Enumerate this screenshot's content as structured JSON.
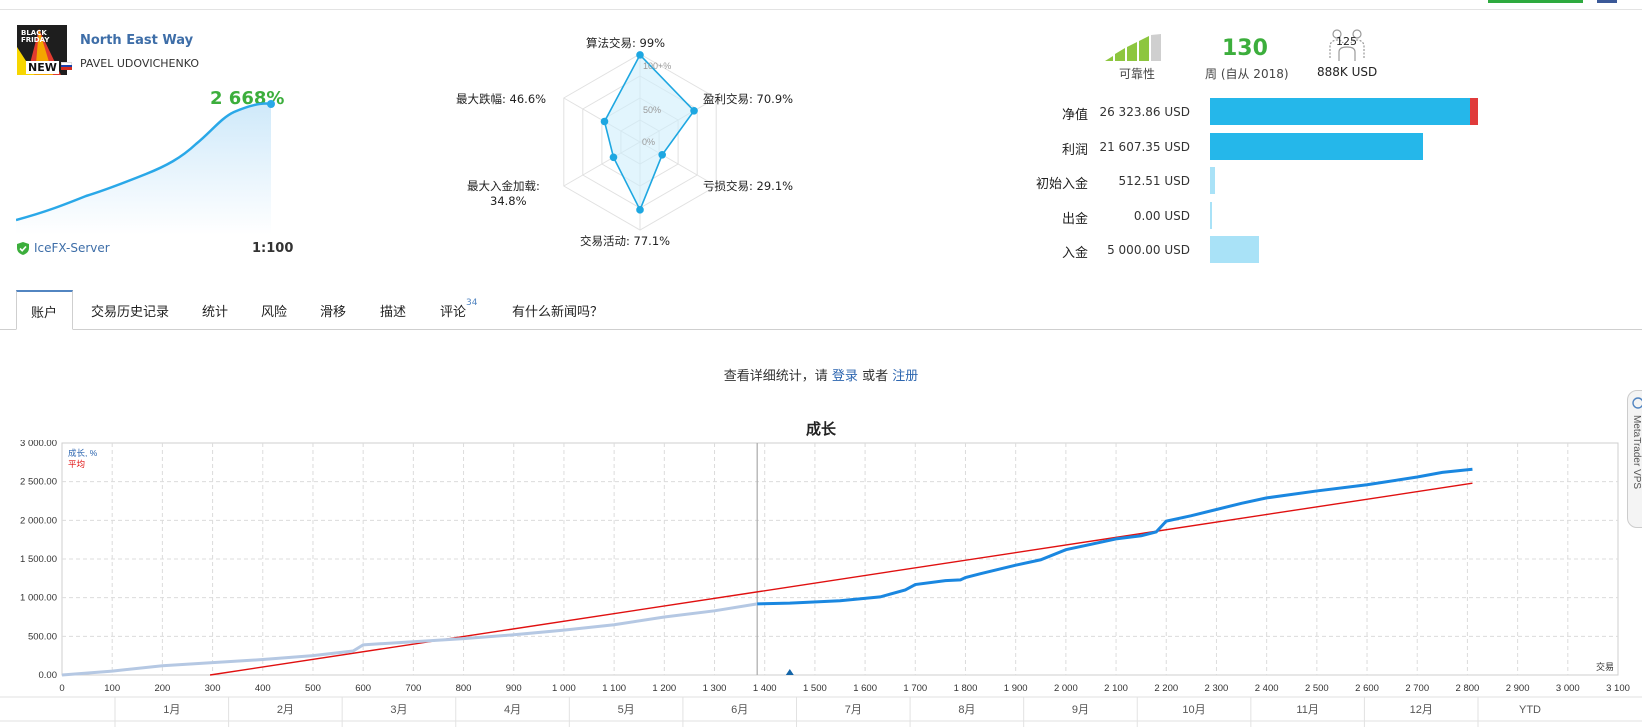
{
  "signal": {
    "name": "North East Way",
    "author": "PAVEL UDOVICHENKO",
    "growth": "2 668%",
    "server": "IceFX-Server",
    "leverage": "1:100",
    "logo_top_text": "BLACK FRIDAY",
    "logo_badge": "NEW"
  },
  "radar": {
    "labels": {
      "algo": "算法交易: 99%",
      "profit": "盈利交易: 70.9%",
      "loss": "亏损交易: 29.1%",
      "activity": "交易活动: 77.1%",
      "deposit_load_1": "最大入金加载:",
      "deposit_load_2": "34.8%",
      "drawdown": "最大跌幅: 46.6%"
    },
    "scale": {
      "top": "100+%",
      "mid": "50%",
      "zero": "0%"
    },
    "values": [
      99,
      70.9,
      29.1,
      77.1,
      34.8,
      46.6
    ]
  },
  "stats": {
    "reliability_label": "可靠性",
    "weeks": "130",
    "weeks_label": "周 (自从 2018)",
    "subscribers": "125",
    "subscribers_funds": "888K USD"
  },
  "finance": [
    {
      "label": "净值",
      "value": "26 323.86 USD",
      "amount": 26323.86,
      "color": "#25b7ea"
    },
    {
      "label": "利润",
      "value": "21 607.35 USD",
      "amount": 21607.35,
      "color": "#25b7ea"
    },
    {
      "label": "初始入金",
      "value": "512.51 USD",
      "amount": 512.51,
      "color": "#a9e2f7"
    },
    {
      "label": "出金",
      "value": "0.00 USD",
      "amount": 0,
      "color": "#a9e2f7"
    },
    {
      "label": "入金",
      "value": "5 000.00 USD",
      "amount": 5000,
      "color": "#a9e2f7"
    }
  ],
  "tabs": {
    "account": "账户",
    "history": "交易历史记录",
    "stats": "统计",
    "risk": "风险",
    "slippage": "滑移",
    "description": "描述",
    "reviews": "评论",
    "reviews_count": "34",
    "news": "有什么新闻吗？"
  },
  "login": {
    "prefix": "查看详细统计，请 ",
    "login_link": "登录",
    "middle": " 或者 ",
    "register_link": "注册"
  },
  "side_widget_text": "MetaTrader VPS",
  "chart_data": {
    "type": "line",
    "title": "成长",
    "legend": [
      {
        "name": "成长, %",
        "color": "#2d66b0"
      },
      {
        "name": "平均",
        "color": "#e01010"
      }
    ],
    "legend_placement": "top-left",
    "xlabel": "交易",
    "xlim": [
      0,
      3100
    ],
    "ylim": [
      0,
      3000
    ],
    "x_ticks": [
      "0",
      "100",
      "200",
      "300",
      "400",
      "500",
      "600",
      "700",
      "800",
      "900",
      "1 000",
      "1 100",
      "1 200",
      "1 300",
      "1 400",
      "1 500",
      "1 600",
      "1 700",
      "1 800",
      "1 900",
      "2 000",
      "2 100",
      "2 200",
      "2 300",
      "2 400",
      "2 500",
      "2 600",
      "2 700",
      "2 800",
      "2 900",
      "3 000",
      "3 100"
    ],
    "y_ticks": [
      "0.00",
      "500.00",
      "1 000.00",
      "1 500.00",
      "2 000.00",
      "2 500.00",
      "3 000.00"
    ],
    "months": [
      "1月",
      "2月",
      "3月",
      "4月",
      "5月",
      "6月",
      "7月",
      "8月",
      "9月",
      "10月",
      "11月",
      "12月",
      "YTD"
    ],
    "split_x": 1385,
    "marker_x": 1450,
    "series_growth": {
      "x": [
        0,
        100,
        200,
        300,
        400,
        500,
        580,
        600,
        700,
        800,
        900,
        1000,
        1100,
        1200,
        1300,
        1385,
        1450,
        1550,
        1630,
        1680,
        1700,
        1760,
        1790,
        1800,
        1830,
        1900,
        1950,
        2000,
        2050,
        2100,
        2150,
        2180,
        2200,
        2250,
        2300,
        2350,
        2400,
        2500,
        2600,
        2700,
        2750,
        2810
      ],
      "y": [
        0,
        50,
        120,
        160,
        200,
        250,
        310,
        390,
        430,
        470,
        520,
        580,
        650,
        750,
        830,
        920,
        930,
        960,
        1010,
        1100,
        1170,
        1220,
        1230,
        1260,
        1310,
        1420,
        1490,
        1620,
        1690,
        1760,
        1800,
        1850,
        1990,
        2060,
        2140,
        2220,
        2290,
        2380,
        2460,
        2560,
        2620,
        2660
      ]
    },
    "series_average": {
      "x": [
        295,
        2810
      ],
      "y": [
        0,
        2480
      ]
    }
  }
}
